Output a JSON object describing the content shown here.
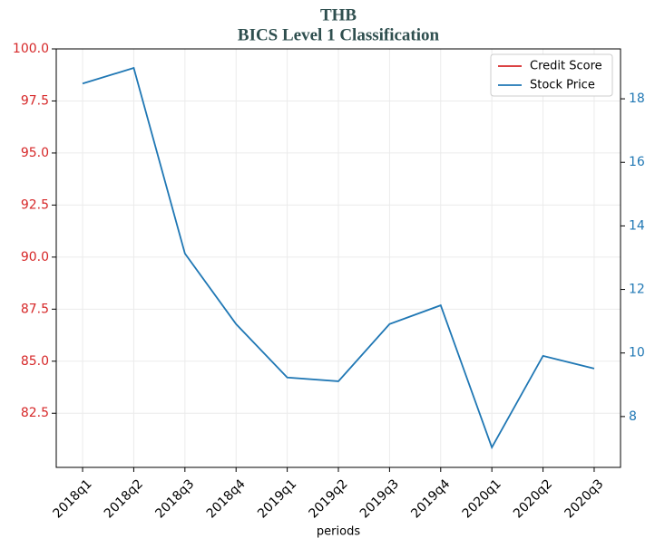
{
  "chart_data": {
    "type": "line",
    "title": "THB",
    "subtitle": "BICS Level 1 Classification",
    "x_label": "periods",
    "categories": [
      "2018q1",
      "2018q2",
      "2018q3",
      "2018q4",
      "2019q1",
      "2019q2",
      "2019q3",
      "2019q4",
      "2020q1",
      "2020q2",
      "2020q3"
    ],
    "series": [
      {
        "name": "Credit Score",
        "color": "#d62728",
        "axis": "y",
        "values": [
          null,
          null,
          null,
          null,
          null,
          null,
          null,
          null,
          null,
          null,
          null
        ]
      },
      {
        "name": "Stock Price",
        "color": "#1f77b4",
        "axis": "y2",
        "values": [
          18.48,
          18.97,
          13.13,
          10.91,
          9.23,
          9.11,
          10.91,
          11.5,
          7.03,
          9.91,
          9.51
        ]
      }
    ],
    "ylim": [
      79.9,
      100
    ],
    "yticks": [
      {
        "value": 82.5,
        "label": "82.5"
      },
      {
        "value": 85,
        "label": "85.0"
      },
      {
        "value": 87.5,
        "label": "87.5"
      },
      {
        "value": 90,
        "label": "90.0"
      },
      {
        "value": 92.5,
        "label": "92.5"
      },
      {
        "value": 95,
        "label": "95.0"
      },
      {
        "value": 97.5,
        "label": "97.5"
      },
      {
        "value": 100,
        "label": "100.0"
      }
    ],
    "y2lim": [
      6.4,
      19.57
    ],
    "y2ticks": [
      8,
      10,
      12,
      14,
      16,
      18
    ],
    "ytick_color": "#d62728",
    "y2tick_color": "#1f77b4",
    "grid": true,
    "legend": "upper right"
  }
}
